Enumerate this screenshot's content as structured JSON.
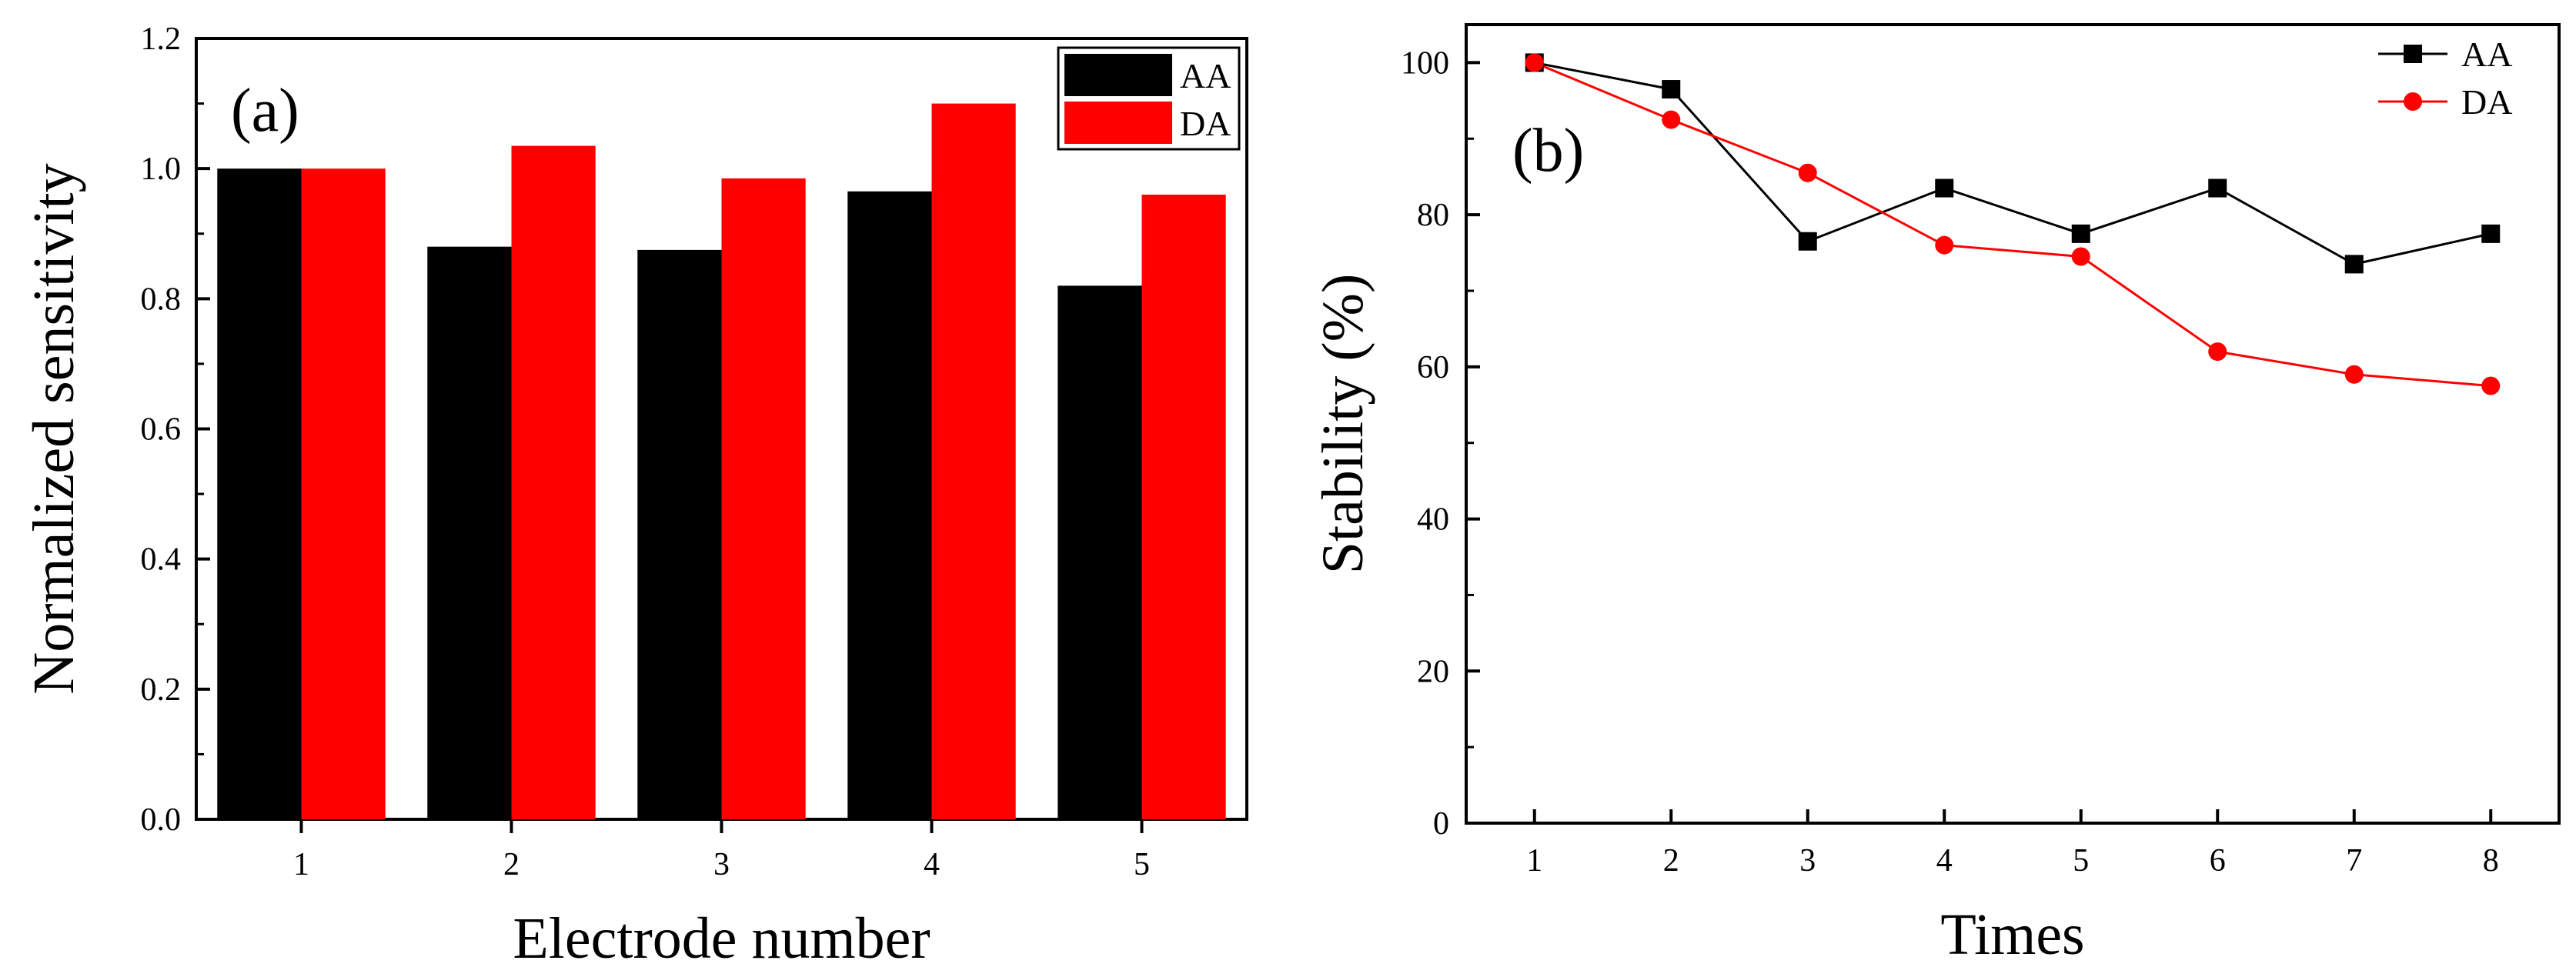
{
  "chart_data": [
    {
      "panel_label": "(a)",
      "type": "bar",
      "categories": [
        "1",
        "2",
        "3",
        "4",
        "5"
      ],
      "series": [
        {
          "name": "AA",
          "color": "#000000",
          "values": [
            1.0,
            0.88,
            0.875,
            0.965,
            0.82
          ]
        },
        {
          "name": "DA",
          "color": "#ff0000",
          "values": [
            1.0,
            1.035,
            0.985,
            1.1,
            0.96
          ]
        }
      ],
      "xlabel": "Electrode number",
      "ylabel": "Normalized sensitivity",
      "ylim": [
        0.0,
        1.2
      ],
      "yticks": [
        "0.0",
        "0.2",
        "0.4",
        "0.6",
        "0.8",
        "1.0",
        "1.2"
      ],
      "legend": "top-right"
    },
    {
      "panel_label": "(b)",
      "type": "line",
      "x": [
        1,
        2,
        3,
        4,
        5,
        6,
        7,
        8
      ],
      "xticks": [
        "1",
        "2",
        "3",
        "4",
        "5",
        "6",
        "7",
        "8"
      ],
      "series": [
        {
          "name": "AA",
          "color": "#000000",
          "marker": "square",
          "values": [
            100,
            96.5,
            76.5,
            83.5,
            77.5,
            83.5,
            73.5,
            77.5
          ]
        },
        {
          "name": "DA",
          "color": "#ff0000",
          "marker": "circle",
          "values": [
            100,
            92.5,
            85.5,
            76,
            74.5,
            62,
            59,
            57.5
          ]
        }
      ],
      "xlabel": "Times",
      "ylabel": "Stability (%)",
      "xlim": [
        0.5,
        8.5
      ],
      "ylim": [
        0,
        105
      ],
      "yticks": [
        "0",
        "20",
        "40",
        "60",
        "80",
        "100"
      ],
      "legend": "top-right"
    }
  ]
}
